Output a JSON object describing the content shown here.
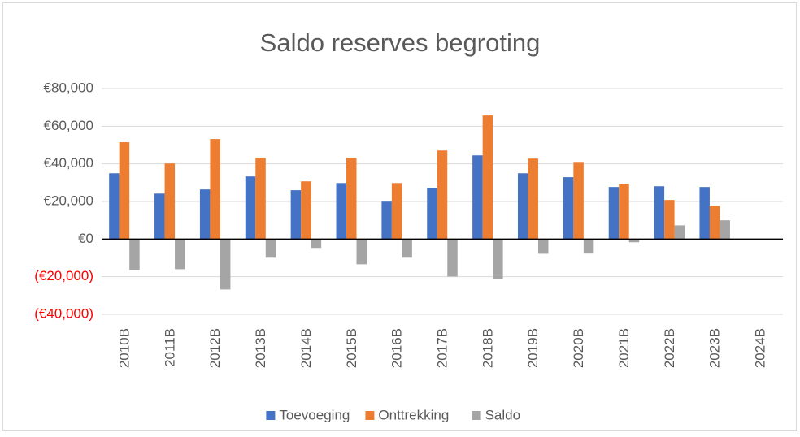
{
  "chart_data": {
    "type": "bar",
    "title": "Saldo reserves begroting",
    "categories": [
      "2010B",
      "2011B",
      "2012B",
      "2013B",
      "2014B",
      "2015B",
      "2016B",
      "2017B",
      "2018B",
      "2019B",
      "2020B",
      "2021B",
      "2022B",
      "2023B",
      "2024B"
    ],
    "series": [
      {
        "name": "Toevoeging",
        "color": "#4472c4",
        "values": [
          35000,
          24200,
          26400,
          33300,
          26000,
          29800,
          19900,
          27200,
          44500,
          35000,
          32900,
          27700,
          28100,
          27700,
          null
        ]
      },
      {
        "name": "Onttrekking",
        "color": "#ed7d31",
        "values": [
          51500,
          40200,
          53200,
          43200,
          30700,
          43200,
          29800,
          47100,
          65700,
          42800,
          40600,
          29400,
          20800,
          17700,
          null
        ]
      },
      {
        "name": "Saldo",
        "color": "#a5a5a5",
        "values": [
          -16500,
          -16000,
          -26800,
          -9900,
          -4700,
          -13400,
          -9900,
          -19900,
          -21200,
          -7800,
          -7700,
          -1700,
          7300,
          10000,
          null
        ]
      }
    ],
    "ylim": [
      -40000,
      80000
    ],
    "yticks": [
      {
        "value": -40000,
        "label": "(€40,000)"
      },
      {
        "value": -20000,
        "label": "(€20,000)"
      },
      {
        "value": 0,
        "label": "€0"
      },
      {
        "value": 20000,
        "label": "€20,000"
      },
      {
        "value": 40000,
        "label": "€40,000"
      },
      {
        "value": 60000,
        "label": "€60,000"
      },
      {
        "value": 80000,
        "label": "€80,000"
      }
    ],
    "grid": true,
    "legend": "bottom",
    "negative_label_color": "#ff0000"
  }
}
